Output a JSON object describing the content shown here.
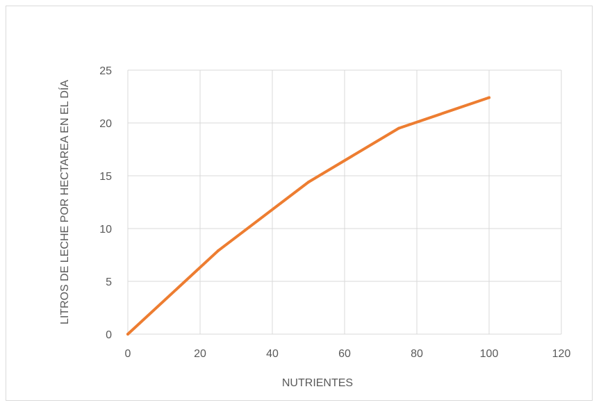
{
  "chart_data": {
    "type": "line",
    "title": "",
    "xlabel": "NUTRIENTES",
    "ylabel": "LITROS DE LECHE POR HECTAREA EN EL DÍA",
    "xlim": [
      0,
      120
    ],
    "ylim": [
      0,
      25
    ],
    "x_ticks": [
      0,
      20,
      40,
      60,
      80,
      100,
      120
    ],
    "y_ticks": [
      0,
      5,
      10,
      15,
      20,
      25
    ],
    "grid": true,
    "legend": "none",
    "series": [
      {
        "x": [
          0,
          25,
          50,
          75,
          100
        ],
        "y": [
          0,
          7.9,
          14.4,
          19.5,
          22.4
        ],
        "color": "#ED7D31"
      }
    ]
  }
}
